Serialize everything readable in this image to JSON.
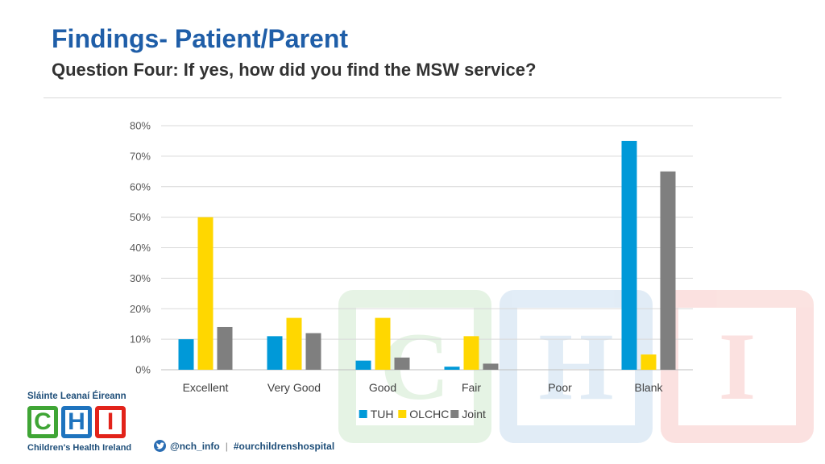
{
  "header": {
    "title": "Findings- Patient/Parent",
    "subtitle": "Question Four: If yes, how did you find the MSW service?"
  },
  "chart_data": {
    "type": "bar",
    "categories": [
      "Excellent",
      "Very Good",
      "Good",
      "Fair",
      "Poor",
      "Blank"
    ],
    "series": [
      {
        "name": "TUH",
        "color": "#0099d8",
        "values": [
          10,
          11,
          3,
          1,
          0,
          75
        ]
      },
      {
        "name": "OLCHC",
        "color": "#ffd700",
        "values": [
          50,
          17,
          17,
          11,
          0,
          5
        ]
      },
      {
        "name": "Joint",
        "color": "#7f7f7f",
        "values": [
          14,
          12,
          4,
          2,
          0,
          65
        ]
      }
    ],
    "yticks": [
      "0%",
      "10%",
      "20%",
      "30%",
      "40%",
      "50%",
      "60%",
      "70%",
      "80%"
    ],
    "ylim": [
      0,
      80
    ],
    "grid": true,
    "legend": "bottom-center"
  },
  "footer": {
    "logo_irish": "Sláinte Leanaí Éireann",
    "logo_letters": [
      "C",
      "H",
      "I"
    ],
    "logo_english": "Children's Health Ireland",
    "twitter_handle": "@nch_info",
    "separator": "|",
    "hashtag": "#ourchildrenshospital",
    "logo_colors": [
      "#3fa535",
      "#1e73be",
      "#e2231a"
    ]
  }
}
